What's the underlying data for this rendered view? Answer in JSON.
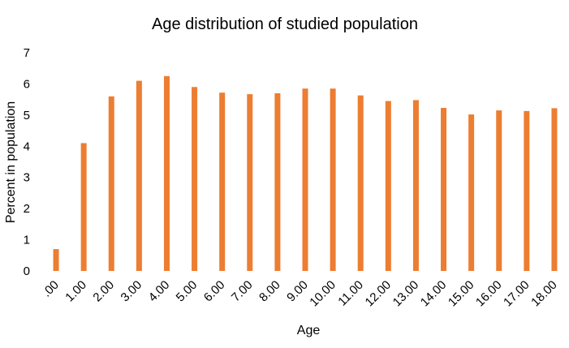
{
  "chart_data": {
    "type": "bar",
    "title": "Age distribution of studied population",
    "xlabel": "Age",
    "ylabel": "Percent in population",
    "categories": [
      ".00",
      "1.00",
      "2.00",
      "3.00",
      "4.00",
      "5.00",
      "6.00",
      "7.00",
      "8.00",
      "9.00",
      "10.00",
      "11.00",
      "12.00",
      "13.00",
      "14.00",
      "15.00",
      "16.00",
      "17.00",
      "18.00"
    ],
    "values": [
      0.7,
      4.1,
      5.6,
      6.1,
      6.25,
      5.9,
      5.72,
      5.67,
      5.7,
      5.85,
      5.85,
      5.63,
      5.45,
      5.48,
      5.23,
      5.02,
      5.15,
      5.13,
      5.22
    ],
    "ylim": [
      0,
      7
    ],
    "yticks": [
      0,
      1,
      2,
      3,
      4,
      5,
      6,
      7
    ],
    "grid": false,
    "bar_color": "#ED7D31"
  }
}
